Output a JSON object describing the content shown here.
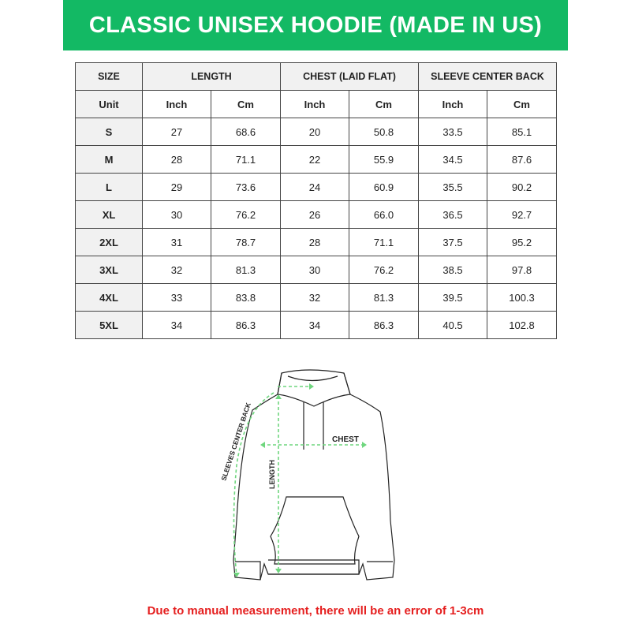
{
  "title": "CLASSIC UNISEX HOODIE (MADE IN US)",
  "colors": {
    "banner": "#13b964",
    "note": "#e51f1f",
    "measure_lines": "#6fd67e"
  },
  "table": {
    "groups": [
      "SIZE",
      "LENGTH",
      "CHEST (LAID FLAT)",
      "SLEEVE CENTER BACK"
    ],
    "units": [
      "Unit",
      "Inch",
      "Cm",
      "Inch",
      "Cm",
      "Inch",
      "Cm"
    ],
    "rows": [
      [
        "S",
        "27",
        "68.6",
        "20",
        "50.8",
        "33.5",
        "85.1"
      ],
      [
        "M",
        "28",
        "71.1",
        "22",
        "55.9",
        "34.5",
        "87.6"
      ],
      [
        "L",
        "29",
        "73.6",
        "24",
        "60.9",
        "35.5",
        "90.2"
      ],
      [
        "XL",
        "30",
        "76.2",
        "26",
        "66.0",
        "36.5",
        "92.7"
      ],
      [
        "2XL",
        "31",
        "78.7",
        "28",
        "71.1",
        "37.5",
        "95.2"
      ],
      [
        "3XL",
        "32",
        "81.3",
        "30",
        "76.2",
        "38.5",
        "97.8"
      ],
      [
        "4XL",
        "33",
        "83.8",
        "32",
        "81.3",
        "39.5",
        "100.3"
      ],
      [
        "5XL",
        "34",
        "86.3",
        "34",
        "86.3",
        "40.5",
        "102.8"
      ]
    ]
  },
  "diagram": {
    "chest": "CHEST",
    "length": "LENGTH",
    "sleeves": "SLEEVES CENTER BACK"
  },
  "note": "Due to manual measurement, there will be an error of 1-3cm"
}
